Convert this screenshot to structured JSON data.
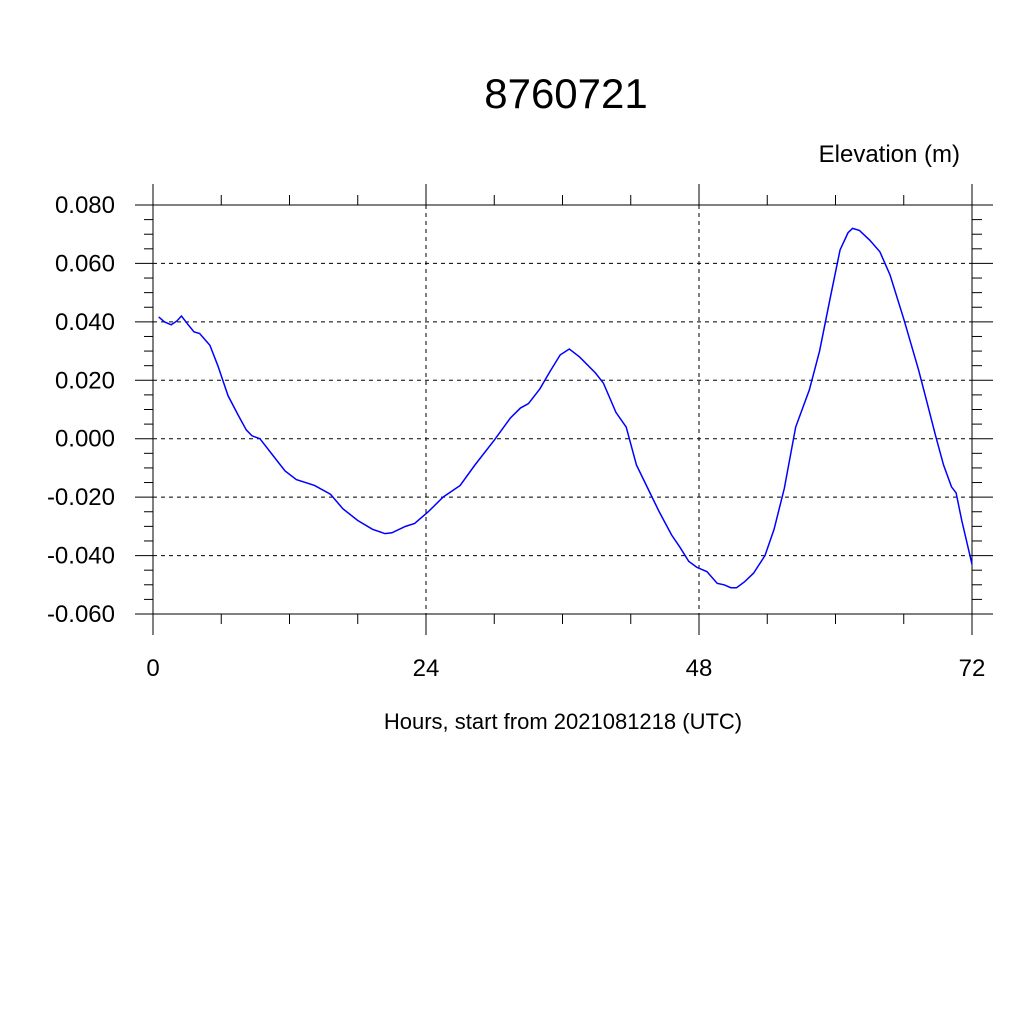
{
  "chart_data": {
    "type": "line",
    "title": "8760721",
    "ylabel": "Elevation (m)",
    "xlabel": "Hours, start from 2021081218 (UTC)",
    "xlim": [
      0,
      72
    ],
    "ylim": [
      -0.06,
      0.08
    ],
    "xticks": [
      0,
      24,
      48,
      72
    ],
    "yticks": [
      {
        "value": -0.06,
        "label": "-0.060"
      },
      {
        "value": -0.04,
        "label": "-0.040"
      },
      {
        "value": -0.02,
        "label": "-0.020"
      },
      {
        "value": 0,
        "label": "0.000"
      },
      {
        "value": 0.02,
        "label": "0.020"
      },
      {
        "value": 0.04,
        "label": "0.040"
      },
      {
        "value": 0.06,
        "label": "0.060"
      },
      {
        "value": 0.08,
        "label": "0.080"
      }
    ],
    "xminorticks": [
      6,
      12,
      18,
      30,
      36,
      42,
      54,
      60,
      66
    ],
    "yminorticks": [
      -0.055,
      -0.05,
      -0.045,
      -0.035,
      -0.03,
      -0.025,
      -0.015,
      -0.01,
      -0.005,
      0.005,
      0.01,
      0.015,
      0.025,
      0.03,
      0.035,
      0.045,
      0.05,
      0.055,
      0.065,
      0.07,
      0.075
    ],
    "grid": true,
    "series": [
      {
        "name": "Elevation",
        "color": "#0000ff",
        "x": [
          0.5,
          1,
          1.6,
          2.1,
          2.5,
          3.1,
          3.6,
          4.1,
          5,
          5.7,
          6.6,
          7.5,
          8.2,
          8.7,
          9.4,
          10.6,
          11.6,
          12.6,
          14.2,
          15.6,
          16.7,
          18,
          19.3,
          20.4,
          21,
          22.2,
          23,
          24.2,
          25.5,
          27,
          28.3,
          30,
          31.4,
          32.3,
          33,
          34,
          34.9,
          35.8,
          36.6,
          37.5,
          38.9,
          39.6,
          40.7,
          41.6,
          42.5,
          43.5,
          44.5,
          45.6,
          46.3,
          47.1,
          47.8,
          48.7,
          49.6,
          50.2,
          50.8,
          51.3,
          52,
          52.8,
          53.8,
          54.6,
          55.5,
          56.5,
          57.7,
          58.6,
          59.5,
          60.4,
          61.1,
          61.5,
          62.1,
          63,
          63.9,
          64.8,
          66,
          67.3,
          68.1,
          68.8,
          69.5,
          70.2,
          70.6,
          71.1,
          72
        ],
        "values": [
          0.0417,
          0.04,
          0.039,
          0.0403,
          0.042,
          0.039,
          0.0366,
          0.036,
          0.032,
          0.025,
          0.0147,
          0.008,
          0.003,
          0.001,
          0.0,
          -0.006,
          -0.011,
          -0.014,
          -0.016,
          -0.019,
          -0.024,
          -0.028,
          -0.031,
          -0.0325,
          -0.0322,
          -0.03,
          -0.029,
          -0.025,
          -0.02,
          -0.016,
          -0.009,
          -0.0005,
          0.007,
          0.0105,
          0.012,
          0.017,
          0.023,
          0.0287,
          0.0307,
          0.028,
          0.0225,
          0.019,
          0.009,
          0.004,
          -0.009,
          -0.017,
          -0.025,
          -0.033,
          -0.037,
          -0.042,
          -0.044,
          -0.0455,
          -0.0495,
          -0.05,
          -0.051,
          -0.051,
          -0.049,
          -0.046,
          -0.04,
          -0.031,
          -0.017,
          0.004,
          0.0167,
          0.03,
          0.0475,
          0.0646,
          0.0705,
          0.072,
          0.0713,
          0.068,
          0.064,
          0.056,
          0.041,
          0.0236,
          0.0116,
          0.001,
          -0.009,
          -0.0165,
          -0.0185,
          -0.028,
          -0.043
        ]
      }
    ]
  }
}
